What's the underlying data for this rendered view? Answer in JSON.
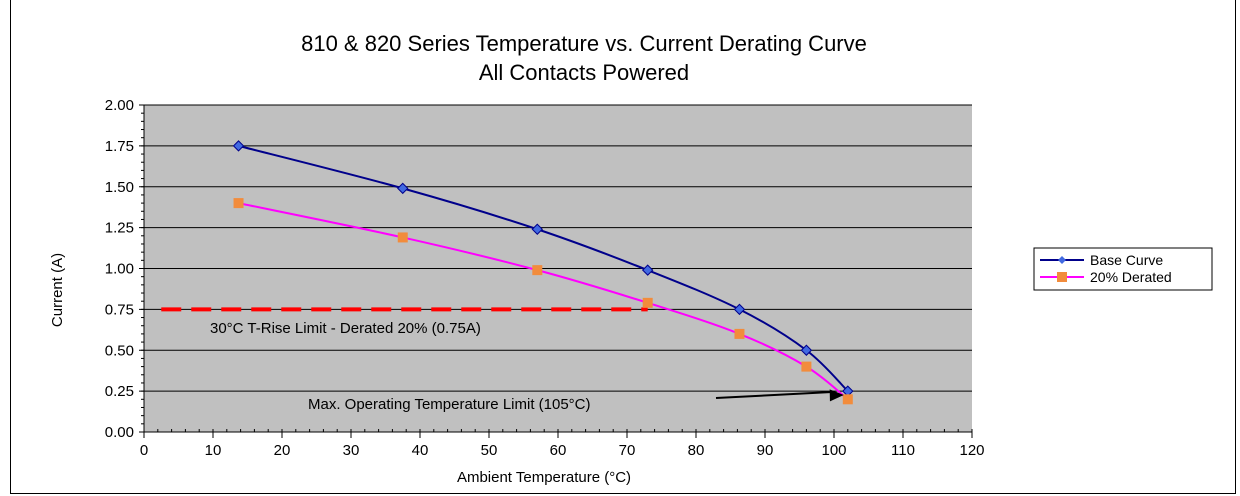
{
  "chart_data": {
    "type": "line",
    "title": "810 & 820 Series Temperature vs. Current Derating Curve",
    "subtitle": "All Contacts Powered",
    "xlabel": "Ambient Temperature (°C)",
    "ylabel": "Current (A)",
    "xlim": [
      0,
      120
    ],
    "ylim": [
      0,
      2.0
    ],
    "xticks": [
      0,
      10,
      20,
      30,
      40,
      50,
      60,
      70,
      80,
      90,
      100,
      110,
      120
    ],
    "yticks": [
      0.0,
      0.25,
      0.5,
      0.75,
      1.0,
      1.25,
      1.5,
      1.75,
      2.0
    ],
    "ytick_labels": [
      "0.00",
      "0.25",
      "0.50",
      "0.75",
      "1.00",
      "1.25",
      "1.50",
      "1.75",
      "2.00"
    ],
    "grid": "horizontal",
    "plot_background": "#c0c0c0",
    "legend_position": "right",
    "series": [
      {
        "name": "Base Curve",
        "color": "#00008b",
        "marker": "diamond",
        "x": [
          13.7,
          37.5,
          57,
          73,
          86.3,
          96,
          102
        ],
        "y": [
          1.75,
          1.49,
          1.24,
          0.99,
          0.75,
          0.5,
          0.25
        ]
      },
      {
        "name": "20% Derated",
        "color": "#ff00ff",
        "marker_color": "#f28c3c",
        "marker": "square",
        "x": [
          13.7,
          37.5,
          57,
          73,
          86.3,
          96,
          102
        ],
        "y": [
          1.4,
          1.19,
          0.99,
          0.79,
          0.6,
          0.4,
          0.2
        ]
      }
    ],
    "reference_line": {
      "y": 0.75,
      "x": [
        2.5,
        73
      ],
      "color": "#ff0000",
      "style": "dashed"
    },
    "annotations": [
      {
        "text": "30°C T-Rise Limit - Derated 20% (0.75A)"
      },
      {
        "text": "Max. Operating Temperature Limit (105°C)",
        "arrow_to": [
          102,
          0.22
        ]
      }
    ]
  }
}
